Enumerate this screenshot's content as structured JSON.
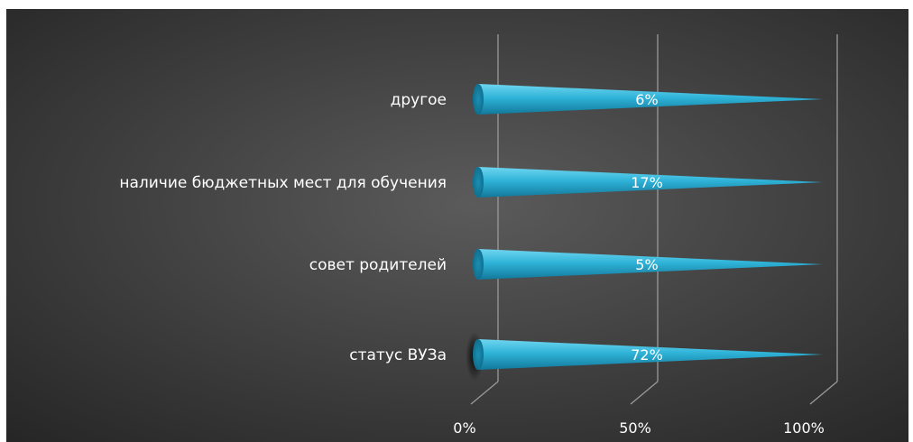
{
  "chart_data": {
    "type": "bar",
    "orientation": "horizontal",
    "stacked": "100%",
    "categories": [
      "другое",
      "наличие бюджетных мест для обучения",
      "совет родителей",
      "статус ВУЗа"
    ],
    "values": [
      6,
      17,
      5,
      72
    ],
    "data_labels": [
      "6%",
      "17%",
      "5%",
      "72%"
    ],
    "x_ticks": [
      "0%",
      "50%",
      "100%"
    ],
    "xlim": [
      0,
      100
    ],
    "grid": true,
    "legend": "none"
  },
  "colors": {
    "background_center": "#5b5b5b",
    "background_edge": "#262626",
    "cone_light": "#6fd6f0",
    "cone_mid": "#2fb3d8",
    "cone_dark": "#12789a",
    "text": "#ffffff",
    "grid": "#9a9a9a"
  }
}
